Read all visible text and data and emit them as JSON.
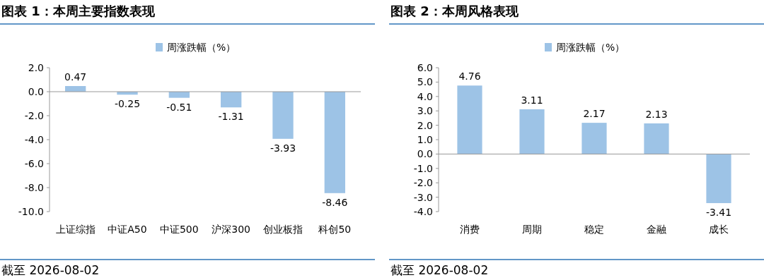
{
  "chart_data": [
    {
      "type": "bar",
      "title": "图表 1：本周主要指数表现",
      "categories": [
        "上证综指",
        "中证A50",
        "中证500",
        "沪深300",
        "创业板指",
        "科创50"
      ],
      "series": [
        {
          "name": "周涨跌幅（%）",
          "color": "#9dc3e6",
          "values": [
            0.47,
            -0.25,
            -0.51,
            -1.31,
            -3.93,
            -8.46
          ]
        }
      ],
      "ylim": [
        -10,
        2
      ],
      "yticks": [
        {
          "value": -10,
          "label": "-10.0"
        },
        {
          "value": -8,
          "label": "-8.0"
        },
        {
          "value": -6,
          "label": "-6.0"
        },
        {
          "value": -4,
          "label": "-4.0"
        },
        {
          "value": -2,
          "label": "-2.0"
        },
        {
          "value": 0,
          "label": "0.0"
        },
        {
          "value": 2,
          "label": "2.0"
        }
      ],
      "data_labels": true,
      "legend": "top",
      "annotations": [
        "截至 2026-08-02"
      ]
    },
    {
      "type": "bar",
      "title": "图表 2：本周风格表现",
      "categories": [
        "消费",
        "周期",
        "稳定",
        "金融",
        "成长"
      ],
      "series": [
        {
          "name": "周涨跌幅（%）",
          "color": "#9dc3e6",
          "values": [
            4.76,
            3.11,
            2.17,
            2.13,
            -3.41
          ]
        }
      ],
      "ylim": [
        -4,
        6
      ],
      "yticks": [
        {
          "value": -4,
          "label": "-4.0"
        },
        {
          "value": -3,
          "label": "-3.0"
        },
        {
          "value": -2,
          "label": "-2.0"
        },
        {
          "value": -1,
          "label": "-1.0"
        },
        {
          "value": 0,
          "label": "0.0"
        },
        {
          "value": 1,
          "label": "1.0"
        },
        {
          "value": 2,
          "label": "2.0"
        },
        {
          "value": 3,
          "label": "3.0"
        },
        {
          "value": 4,
          "label": "4.0"
        },
        {
          "value": 5,
          "label": "5.0"
        },
        {
          "value": 6,
          "label": "6.0"
        }
      ],
      "data_labels": true,
      "legend": "top",
      "annotations": [
        "截至 2026-08-02"
      ]
    }
  ]
}
